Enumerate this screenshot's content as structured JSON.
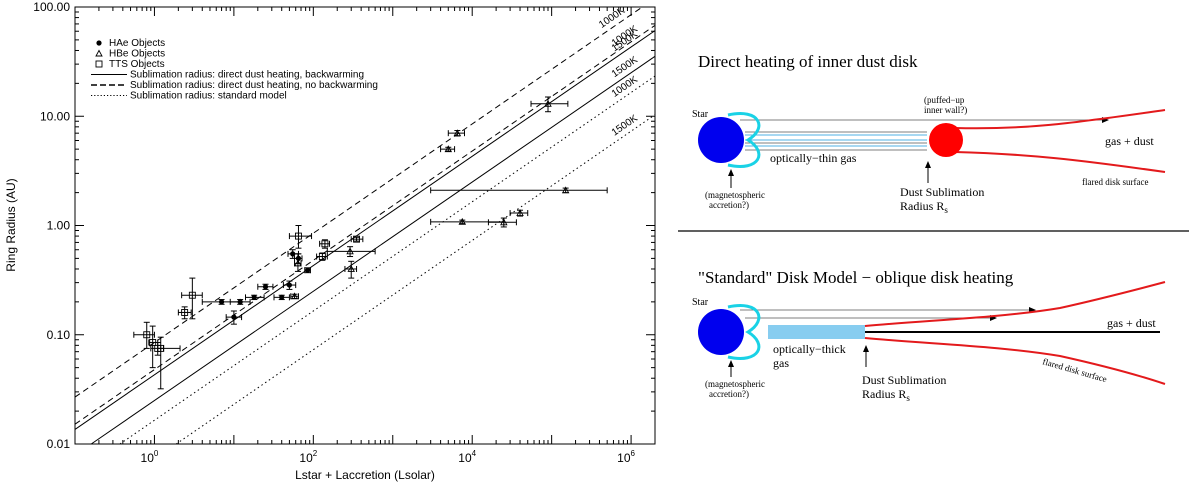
{
  "chart_data": {
    "type": "scatter",
    "xlabel": "Lstar + Laccretion (Lsolar)",
    "ylabel": "Ring Radius (AU)",
    "x_log": true,
    "y_log": true,
    "xlim": [
      0.1,
      2000000
    ],
    "ylim": [
      0.01,
      100
    ],
    "x_ticks": [
      {
        "value": 1,
        "base": "10",
        "exp": "0"
      },
      {
        "value": 100,
        "base": "10",
        "exp": "2"
      },
      {
        "value": 10000,
        "base": "10",
        "exp": "4"
      },
      {
        "value": 1000000,
        "base": "10",
        "exp": "6"
      }
    ],
    "y_ticks": [
      {
        "value": 0.01,
        "label": "0.01"
      },
      {
        "value": 0.1,
        "label": "0.10"
      },
      {
        "value": 1,
        "label": "1.00"
      },
      {
        "value": 10,
        "label": "10.00"
      },
      {
        "value": 100,
        "label": "100.00"
      }
    ],
    "legend": {
      "position": "top-left",
      "items": [
        {
          "marker": "filled-circle",
          "label": "HAe Objects"
        },
        {
          "marker": "triangle",
          "label": "HBe Objects"
        },
        {
          "marker": "square",
          "label": "TTS Objects"
        },
        {
          "line": "solid",
          "label": "Sublimation radius: direct dust heating, backwarming"
        },
        {
          "line": "dashed",
          "label": "Sublimation radius: direct dust heating, no backwarming"
        },
        {
          "line": "dotted",
          "label": "Sublimation radius: standard model"
        }
      ]
    },
    "model_lines": [
      {
        "style": "dashed",
        "label": "1000K",
        "coef": 0.085
      },
      {
        "style": "dashed",
        "label": "1000K",
        "coef": 0.048
      },
      {
        "style": "solid",
        "label": "1500K",
        "coef": 0.043
      },
      {
        "style": "solid",
        "label": "1500K",
        "coef": 0.025
      },
      {
        "style": "dotted",
        "label": "1000K",
        "coef": 0.0165
      },
      {
        "style": "dotted",
        "label": "1500K",
        "coef": 0.0073
      }
    ],
    "series": [
      {
        "name": "HAe Objects",
        "marker": "filled-circle",
        "points": [
          {
            "x": 7,
            "y": 0.2,
            "xlo": 4,
            "xhi": 12,
            "ylo": 0.19,
            "yhi": 0.21
          },
          {
            "x": 10,
            "y": 0.145,
            "xlo": 8,
            "xhi": 12.5,
            "ylo": 0.125,
            "yhi": 0.165
          },
          {
            "x": 12,
            "y": 0.2,
            "xlo": 9,
            "xhi": 16,
            "ylo": 0.19,
            "yhi": 0.21
          },
          {
            "x": 18,
            "y": 0.22,
            "xlo": 14,
            "xhi": 24,
            "ylo": 0.21,
            "yhi": 0.23
          },
          {
            "x": 25,
            "y": 0.275,
            "xlo": 20,
            "xhi": 31,
            "ylo": 0.26,
            "yhi": 0.29
          },
          {
            "x": 40,
            "y": 0.22,
            "xlo": 32,
            "xhi": 50,
            "ylo": 0.21,
            "yhi": 0.23
          },
          {
            "x": 50,
            "y": 0.285,
            "xlo": 42,
            "xhi": 60,
            "ylo": 0.26,
            "yhi": 0.31
          },
          {
            "x": 55,
            "y": 0.55,
            "xlo": 48,
            "xhi": 65,
            "ylo": 0.5,
            "yhi": 0.6
          },
          {
            "x": 65,
            "y": 0.5,
            "xlo": 58,
            "xhi": 72,
            "ylo": 0.45,
            "yhi": 0.55
          },
          {
            "x": 85,
            "y": 0.39,
            "xlo": 78,
            "xhi": 92,
            "ylo": 0.37,
            "yhi": 0.41
          }
        ]
      },
      {
        "name": "HBe Objects",
        "marker": "triangle",
        "points": [
          {
            "x": 58,
            "y": 0.225,
            "xlo": 52,
            "xhi": 65,
            "ylo": 0.215,
            "yhi": 0.235
          },
          {
            "x": 64,
            "y": 0.45,
            "xlo": 58,
            "xhi": 70,
            "ylo": 0.38,
            "yhi": 0.55
          },
          {
            "x": 290,
            "y": 0.58,
            "xlo": 150,
            "xhi": 600,
            "ylo": 0.52,
            "yhi": 0.64
          },
          {
            "x": 300,
            "y": 0.4,
            "xlo": 250,
            "xhi": 350,
            "ylo": 0.33,
            "yhi": 0.47
          },
          {
            "x": 5000,
            "y": 5.0,
            "xlo": 4000,
            "xhi": 6000,
            "ylo": 4.8,
            "yhi": 5.2
          },
          {
            "x": 6500,
            "y": 7.0,
            "xlo": 5000,
            "xhi": 8000,
            "ylo": 6.6,
            "yhi": 7.4
          },
          {
            "x": 90000,
            "y": 13.0,
            "xlo": 55000,
            "xhi": 160000,
            "ylo": 11.0,
            "yhi": 15.0
          },
          {
            "x": 7500,
            "y": 1.08,
            "xlo": 3000,
            "xhi": 25000,
            "ylo": 1.04,
            "yhi": 1.12
          },
          {
            "x": 25000,
            "y": 1.07,
            "xlo": 16000,
            "xhi": 36000,
            "ylo": 0.97,
            "yhi": 1.17
          },
          {
            "x": 40000,
            "y": 1.3,
            "xlo": 30000,
            "xhi": 50000,
            "ylo": 1.22,
            "yhi": 1.38
          },
          {
            "x": 150000,
            "y": 2.1,
            "xlo": 3000,
            "xhi": 500000,
            "ylo": 2.0,
            "yhi": 2.2
          }
        ]
      },
      {
        "name": "TTS Objects",
        "marker": "square",
        "points": [
          {
            "x": 0.8,
            "y": 0.1,
            "xlo": 0.55,
            "xhi": 1.0,
            "ylo": 0.075,
            "yhi": 0.13
          },
          {
            "x": 0.95,
            "y": 0.085,
            "xlo": 0.85,
            "xhi": 1.1,
            "ylo": 0.05,
            "yhi": 0.12
          },
          {
            "x": 1.1,
            "y": 0.075,
            "xlo": 0.9,
            "xhi": 2.1,
            "ylo": 0.065,
            "yhi": 0.085
          },
          {
            "x": 1.2,
            "y": 0.075,
            "xlo": 1.1,
            "xhi": 1.3,
            "ylo": 0.032,
            "yhi": 0.095
          },
          {
            "x": 2.4,
            "y": 0.16,
            "xlo": 2.0,
            "xhi": 2.9,
            "ylo": 0.14,
            "yhi": 0.18
          },
          {
            "x": 3.0,
            "y": 0.23,
            "xlo": 2.2,
            "xhi": 4.0,
            "ylo": 0.14,
            "yhi": 0.33
          },
          {
            "x": 65,
            "y": 0.8,
            "xlo": 50,
            "xhi": 95,
            "ylo": 0.62,
            "yhi": 1.0
          },
          {
            "x": 130,
            "y": 0.52,
            "xlo": 110,
            "xhi": 150,
            "ylo": 0.48,
            "yhi": 0.56
          },
          {
            "x": 140,
            "y": 0.68,
            "xlo": 120,
            "xhi": 160,
            "ylo": 0.62,
            "yhi": 0.74
          },
          {
            "x": 350,
            "y": 0.75,
            "xlo": 300,
            "xhi": 420,
            "ylo": 0.72,
            "yhi": 0.78
          }
        ]
      }
    ]
  },
  "diagram_top": {
    "title": "Direct heating of inner dust disk",
    "star_label": "Star",
    "wall_note": "(puffed−up\ninner wall?)",
    "gas_dust": "gas + dust",
    "thin_gas": "optically−thin gas",
    "dust_sub_1": "Dust Sublimation",
    "dust_sub_2": "Radius R",
    "subscript": "s",
    "mag_note": "(magnetospheric\naccretion?)",
    "surface": "flared disk surface",
    "colors": {
      "star": "#0000ee",
      "wall": "#ff0000",
      "accretion": "#19d2e6",
      "disk": "#e31a1c"
    }
  },
  "diagram_bottom": {
    "title": "\"Standard\" Disk Model − oblique disk heating",
    "star_label": "Star",
    "gas_dust": "gas + dust",
    "thick_gas": "optically−thick\ngas",
    "dust_sub_1": "Dust Sublimation",
    "dust_sub_2": "Radius R",
    "subscript": "s",
    "mag_note": "(magnetospheric\naccretion?)",
    "surface": "flared disk surface",
    "colors": {
      "star": "#0000ee",
      "thick_gas": "#87cdf0",
      "accretion": "#19d2e6",
      "disk": "#e31a1c"
    }
  }
}
